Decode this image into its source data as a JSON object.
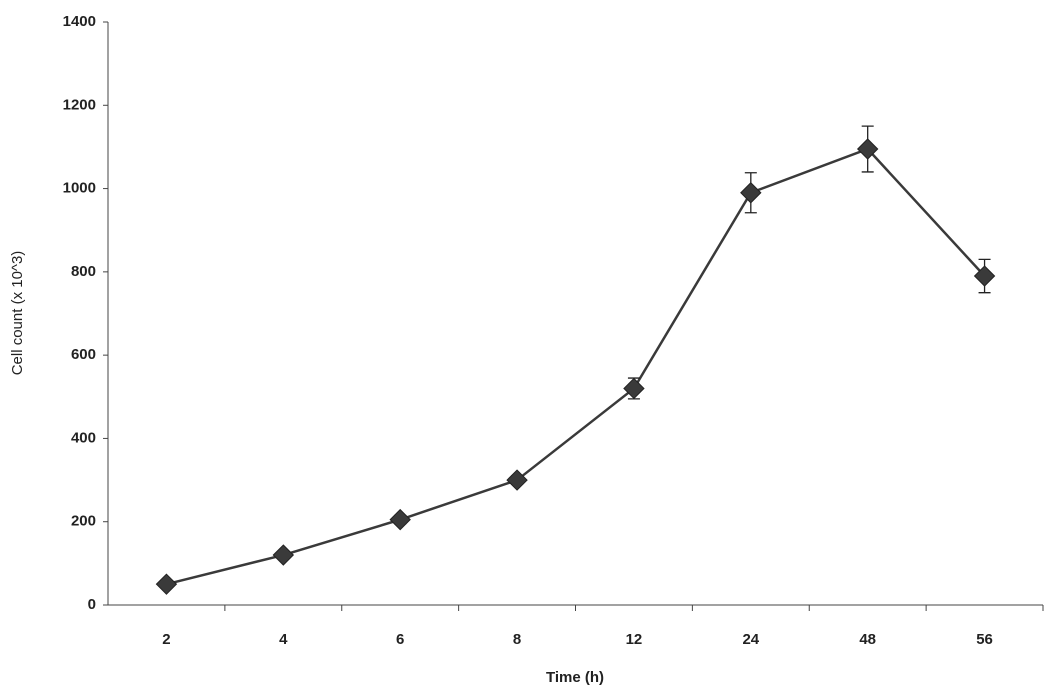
{
  "chart_data": {
    "type": "line",
    "x_label": "Time (h)",
    "y_label": "Cell count (x 10^3)",
    "categories": [
      "2",
      "4",
      "6",
      "8",
      "12",
      "24",
      "48",
      "56"
    ],
    "values": [
      50,
      120,
      205,
      300,
      520,
      990,
      1095,
      790
    ],
    "errors": [
      5,
      8,
      10,
      10,
      25,
      48,
      55,
      40
    ],
    "color": "#3a3a3a",
    "ylim": [
      0,
      1400
    ],
    "yticks": [
      0,
      200,
      400,
      600,
      800,
      1000,
      1200,
      1400
    ],
    "grid": false
  }
}
